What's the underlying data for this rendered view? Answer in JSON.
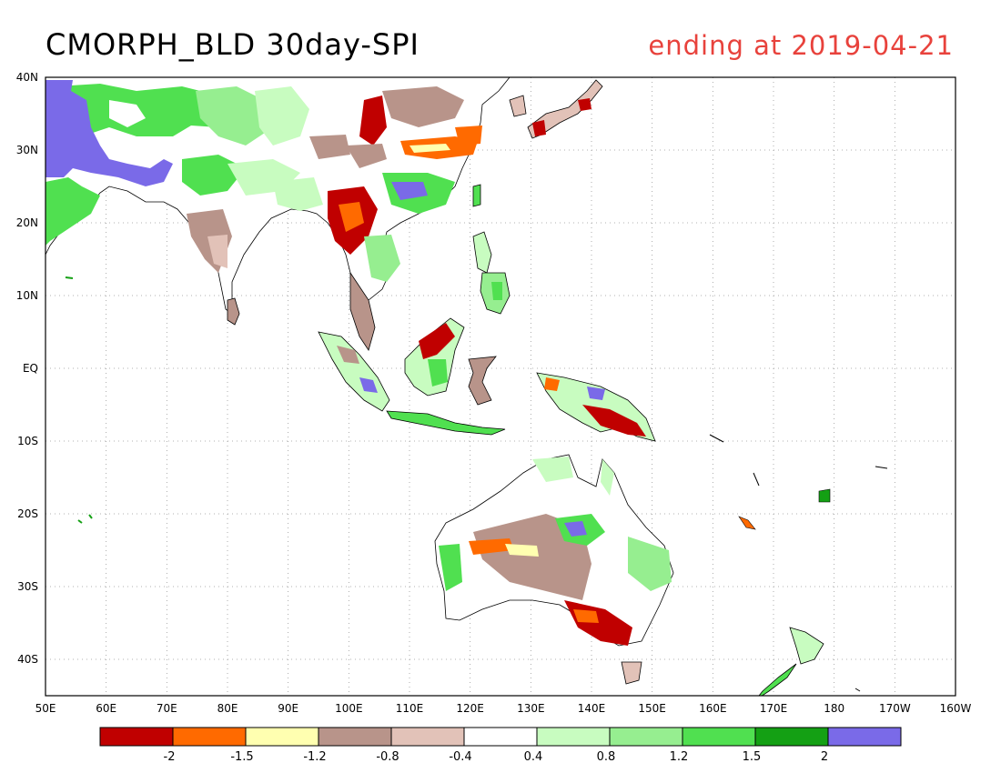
{
  "header": {
    "title": "CMORPH_BLD 30day-SPI",
    "date_label": "ending at 2019-04-21"
  },
  "map": {
    "lon_labels": [
      "50E",
      "60E",
      "70E",
      "80E",
      "90E",
      "100E",
      "110E",
      "120E",
      "130E",
      "140E",
      "150E",
      "160E",
      "170E",
      "180",
      "170W",
      "160W"
    ],
    "lat_labels": [
      "40N",
      "30N",
      "20N",
      "10N",
      "EQ",
      "10S",
      "20S",
      "30S",
      "40S"
    ],
    "lon_range": [
      50,
      200
    ],
    "lat_range": [
      -45,
      40
    ]
  },
  "colorbar": {
    "colors": [
      "#c00000",
      "#ff6a00",
      "#ffffb0",
      "#b8948a",
      "#e2c2b8",
      "#ffffff",
      "#c8fcc0",
      "#96ee90",
      "#50e050",
      "#14a014",
      "#7a6ae8"
    ],
    "labels": [
      "-2",
      "-1.5",
      "-1.2",
      "-0.8",
      "-0.4",
      "0.4",
      "0.8",
      "1.2",
      "1.5",
      "2"
    ]
  }
}
